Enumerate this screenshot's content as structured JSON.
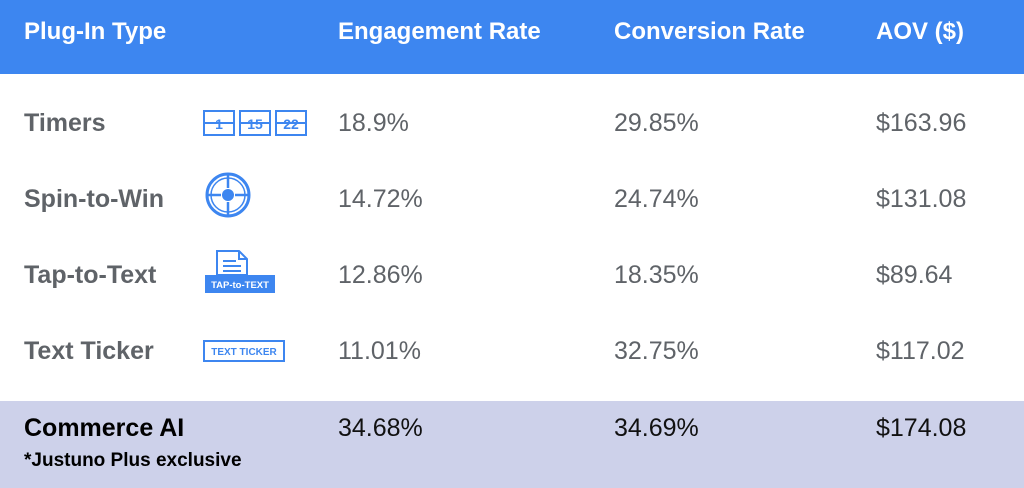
{
  "chart_data": {
    "type": "table",
    "columns": [
      "Plug-In Type",
      "Engagement Rate",
      "Conversion Rate",
      "AOV ($)"
    ],
    "rows": [
      {
        "type": "Timers",
        "engagement": "18.9%",
        "conversion": "29.85%",
        "aov": "$163.96"
      },
      {
        "type": "Spin-to-Win",
        "engagement": "14.72%",
        "conversion": "24.74%",
        "aov": "$131.08"
      },
      {
        "type": "Tap-to-Text",
        "engagement": "12.86%",
        "conversion": "18.35%",
        "aov": "$89.64"
      },
      {
        "type": "Text Ticker",
        "engagement": "11.01%",
        "conversion": "32.75%",
        "aov": "$117.02"
      }
    ],
    "highlight_row": {
      "type": "Commerce AI",
      "note": "*Justuno Plus exclusive",
      "engagement": "34.68%",
      "conversion": "34.69%",
      "aov": "$174.08"
    }
  },
  "icons": {
    "timers": {
      "name": "calendar-numbers-icon",
      "labels": [
        "1",
        "15",
        "22"
      ]
    },
    "spin": {
      "name": "spin-wheel-icon"
    },
    "tap": {
      "name": "tap-to-text-icon",
      "label": "TAP-to-TEXT"
    },
    "ticker": {
      "name": "text-ticker-icon",
      "label": "TEXT TICKER"
    }
  },
  "colors": {
    "header_bg": "#3d86f0",
    "header_text": "#ffffff",
    "body_text": "#5f6368",
    "footer_bg": "#cdd1ea",
    "icon_blue": "#3d86f0"
  }
}
